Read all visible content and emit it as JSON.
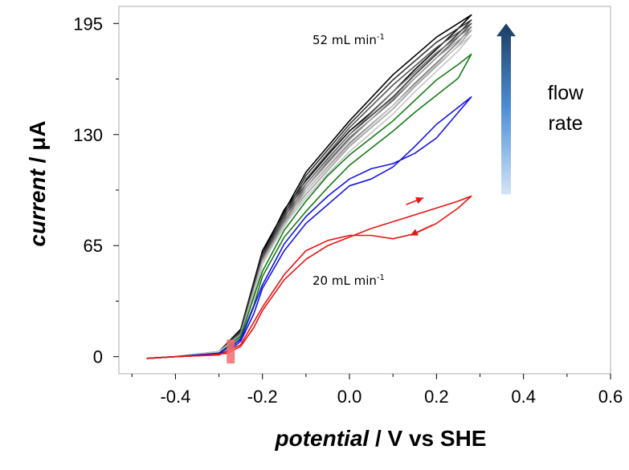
{
  "chart_data": {
    "type": "line",
    "title": "",
    "xlabel_italic": "potential",
    "xlabel_rest": " / V vs SHE",
    "ylabel_italic": "current",
    "ylabel_rest": " / μA",
    "xlim": [
      -0.53,
      0.6
    ],
    "ylim": [
      -10,
      205
    ],
    "x_ticks": [
      -0.4,
      -0.2,
      0.0,
      0.2,
      0.4,
      0.6
    ],
    "x_tick_labels": [
      "-0.4",
      "-0.2",
      "0.0",
      "0.2",
      "0.4",
      "0.6"
    ],
    "y_ticks": [
      0,
      65,
      130,
      195
    ],
    "y_tick_labels": [
      "0",
      "65",
      "130",
      "195"
    ],
    "grid": false,
    "series": [
      {
        "name": "52 mL min-1 (a)",
        "color": "#000000",
        "forward": [
          [
            -0.465,
            -1
          ],
          [
            -0.4,
            0
          ],
          [
            -0.32,
            1
          ],
          [
            -0.28,
            4
          ],
          [
            -0.25,
            15
          ],
          [
            -0.22,
            40
          ],
          [
            -0.2,
            60
          ],
          [
            -0.15,
            86
          ],
          [
            -0.1,
            103
          ],
          [
            -0.05,
            118
          ],
          [
            0.0,
            132
          ],
          [
            0.05,
            143
          ],
          [
            0.1,
            155
          ],
          [
            0.15,
            168
          ],
          [
            0.2,
            180
          ],
          [
            0.25,
            192
          ],
          [
            0.28,
            200
          ]
        ],
        "reverse": [
          [
            0.28,
            200
          ],
          [
            0.2,
            187
          ],
          [
            0.1,
            165
          ],
          [
            0.0,
            138
          ],
          [
            -0.1,
            108
          ],
          [
            -0.2,
            62
          ],
          [
            -0.25,
            16
          ],
          [
            -0.3,
            3
          ],
          [
            -0.4,
            0
          ],
          [
            -0.465,
            -1
          ]
        ]
      },
      {
        "name": "52 mL min-1 (b)",
        "color": "#333333",
        "forward": [
          [
            -0.465,
            -1
          ],
          [
            -0.4,
            0
          ],
          [
            -0.32,
            1
          ],
          [
            -0.28,
            4
          ],
          [
            -0.25,
            14
          ],
          [
            -0.22,
            38
          ],
          [
            -0.2,
            58
          ],
          [
            -0.15,
            84
          ],
          [
            -0.1,
            101
          ],
          [
            -0.05,
            116
          ],
          [
            0.0,
            130
          ],
          [
            0.05,
            141
          ],
          [
            0.1,
            152
          ],
          [
            0.15,
            165
          ],
          [
            0.2,
            177
          ],
          [
            0.25,
            189
          ],
          [
            0.28,
            197
          ]
        ],
        "reverse": [
          [
            0.28,
            197
          ],
          [
            0.2,
            184
          ],
          [
            0.1,
            162
          ],
          [
            0.0,
            136
          ],
          [
            -0.1,
            106
          ],
          [
            -0.2,
            60
          ],
          [
            -0.25,
            15
          ],
          [
            -0.3,
            3
          ],
          [
            -0.4,
            0
          ],
          [
            -0.465,
            -1
          ]
        ]
      },
      {
        "name": "52 mL min-1 (c)",
        "color": "#555555",
        "forward": [
          [
            -0.465,
            -1
          ],
          [
            -0.4,
            0
          ],
          [
            -0.32,
            1
          ],
          [
            -0.28,
            4
          ],
          [
            -0.25,
            14
          ],
          [
            -0.22,
            37
          ],
          [
            -0.2,
            57
          ],
          [
            -0.15,
            82
          ],
          [
            -0.1,
            99
          ],
          [
            -0.05,
            114
          ],
          [
            0.0,
            128
          ],
          [
            0.05,
            139
          ],
          [
            0.1,
            150
          ],
          [
            0.15,
            163
          ],
          [
            0.2,
            175
          ],
          [
            0.25,
            187
          ],
          [
            0.28,
            195
          ]
        ],
        "reverse": [
          [
            0.28,
            195
          ],
          [
            0.2,
            181
          ],
          [
            0.1,
            159
          ],
          [
            0.0,
            134
          ],
          [
            -0.1,
            104
          ],
          [
            -0.2,
            58
          ],
          [
            -0.25,
            14
          ],
          [
            -0.3,
            3
          ],
          [
            -0.4,
            0
          ],
          [
            -0.465,
            -1
          ]
        ]
      },
      {
        "name": "52 mL min-1 (d)",
        "color": "#7a7a7a",
        "forward": [
          [
            -0.465,
            -1
          ],
          [
            -0.4,
            0
          ],
          [
            -0.32,
            1
          ],
          [
            -0.28,
            4
          ],
          [
            -0.25,
            13
          ],
          [
            -0.22,
            36
          ],
          [
            -0.2,
            56
          ],
          [
            -0.15,
            80
          ],
          [
            -0.1,
            97
          ],
          [
            -0.05,
            111
          ],
          [
            0.0,
            125
          ],
          [
            0.05,
            136
          ],
          [
            0.1,
            147
          ],
          [
            0.15,
            160
          ],
          [
            0.2,
            172
          ],
          [
            0.25,
            184
          ],
          [
            0.28,
            193
          ]
        ],
        "reverse": [
          [
            0.28,
            193
          ],
          [
            0.2,
            178
          ],
          [
            0.1,
            155
          ],
          [
            0.0,
            130
          ],
          [
            -0.1,
            101
          ],
          [
            -0.2,
            57
          ],
          [
            -0.25,
            13
          ],
          [
            -0.3,
            3
          ],
          [
            -0.4,
            0
          ],
          [
            -0.465,
            -1
          ]
        ]
      },
      {
        "name": "52 mL min-1 (e)",
        "color": "#a0a0a0",
        "forward": [
          [
            -0.465,
            -1
          ],
          [
            -0.4,
            0
          ],
          [
            -0.32,
            1
          ],
          [
            -0.28,
            4
          ],
          [
            -0.25,
            13
          ],
          [
            -0.22,
            35
          ],
          [
            -0.2,
            55
          ],
          [
            -0.15,
            78
          ],
          [
            -0.1,
            95
          ],
          [
            -0.05,
            109
          ],
          [
            0.0,
            123
          ],
          [
            0.05,
            134
          ],
          [
            0.1,
            145
          ],
          [
            0.15,
            158
          ],
          [
            0.2,
            170
          ],
          [
            0.25,
            182
          ],
          [
            0.28,
            191
          ]
        ],
        "reverse": [
          [
            0.28,
            191
          ],
          [
            0.2,
            175
          ],
          [
            0.1,
            151
          ],
          [
            0.0,
            127
          ],
          [
            -0.1,
            99
          ],
          [
            -0.2,
            56
          ],
          [
            -0.25,
            13
          ],
          [
            -0.3,
            3
          ],
          [
            -0.4,
            0
          ],
          [
            -0.465,
            -1
          ]
        ]
      },
      {
        "name": "52 mL min-1 (f)",
        "color": "#c4c4c4",
        "forward": [
          [
            -0.465,
            -1
          ],
          [
            -0.4,
            0
          ],
          [
            -0.32,
            1
          ],
          [
            -0.28,
            3
          ],
          [
            -0.25,
            12
          ],
          [
            -0.22,
            34
          ],
          [
            -0.2,
            54
          ],
          [
            -0.15,
            77
          ],
          [
            -0.1,
            93
          ],
          [
            -0.05,
            107
          ],
          [
            0.0,
            120
          ],
          [
            0.05,
            131
          ],
          [
            0.1,
            142
          ],
          [
            0.15,
            155
          ],
          [
            0.2,
            167
          ],
          [
            0.25,
            179
          ],
          [
            0.28,
            188
          ]
        ],
        "reverse": [
          [
            0.28,
            188
          ],
          [
            0.2,
            171
          ],
          [
            0.1,
            147
          ],
          [
            0.0,
            124
          ],
          [
            -0.1,
            97
          ],
          [
            -0.2,
            55
          ],
          [
            -0.25,
            12
          ],
          [
            -0.3,
            3
          ],
          [
            -0.4,
            0
          ],
          [
            -0.465,
            -1
          ]
        ]
      },
      {
        "name": "green",
        "color": "#157a15",
        "forward": [
          [
            -0.465,
            -1
          ],
          [
            -0.4,
            0
          ],
          [
            -0.32,
            1
          ],
          [
            -0.28,
            3
          ],
          [
            -0.25,
            11
          ],
          [
            -0.22,
            30
          ],
          [
            -0.2,
            47
          ],
          [
            -0.15,
            70
          ],
          [
            -0.1,
            85
          ],
          [
            -0.05,
            99
          ],
          [
            0.0,
            112
          ],
          [
            0.05,
            122
          ],
          [
            0.1,
            132
          ],
          [
            0.15,
            143
          ],
          [
            0.2,
            153
          ],
          [
            0.25,
            163
          ],
          [
            0.28,
            177
          ]
        ],
        "reverse": [
          [
            0.28,
            177
          ],
          [
            0.25,
            171
          ],
          [
            0.2,
            162
          ],
          [
            0.15,
            150
          ],
          [
            0.1,
            138
          ],
          [
            0.05,
            128
          ],
          [
            0.0,
            118
          ],
          [
            -0.05,
            106
          ],
          [
            -0.1,
            91
          ],
          [
            -0.15,
            74
          ],
          [
            -0.2,
            50
          ],
          [
            -0.25,
            12
          ],
          [
            -0.3,
            2
          ],
          [
            -0.4,
            0
          ],
          [
            -0.465,
            -1
          ]
        ]
      },
      {
        "name": "blue",
        "color": "#1414e6",
        "forward": [
          [
            -0.465,
            -1
          ],
          [
            -0.4,
            0
          ],
          [
            -0.32,
            1
          ],
          [
            -0.28,
            3
          ],
          [
            -0.25,
            9
          ],
          [
            -0.22,
            25
          ],
          [
            -0.2,
            40
          ],
          [
            -0.15,
            62
          ],
          [
            -0.1,
            78
          ],
          [
            -0.05,
            89
          ],
          [
            0.0,
            100
          ],
          [
            0.05,
            104
          ],
          [
            0.1,
            111
          ],
          [
            0.15,
            123
          ],
          [
            0.2,
            136
          ],
          [
            0.25,
            146
          ],
          [
            0.28,
            152
          ]
        ],
        "reverse": [
          [
            0.28,
            152
          ],
          [
            0.25,
            143
          ],
          [
            0.2,
            128
          ],
          [
            0.15,
            119
          ],
          [
            0.1,
            113
          ],
          [
            0.05,
            110
          ],
          [
            0.0,
            104
          ],
          [
            -0.05,
            94
          ],
          [
            -0.1,
            82
          ],
          [
            -0.15,
            66
          ],
          [
            -0.2,
            42
          ],
          [
            -0.25,
            10
          ],
          [
            -0.3,
            2
          ],
          [
            -0.4,
            0
          ],
          [
            -0.465,
            -1
          ]
        ]
      },
      {
        "name": "20 mL min-1",
        "color": "#e81414",
        "forward": [
          [
            -0.465,
            -1
          ],
          [
            -0.4,
            0
          ],
          [
            -0.32,
            1
          ],
          [
            -0.28,
            2
          ],
          [
            -0.25,
            6
          ],
          [
            -0.22,
            17
          ],
          [
            -0.2,
            27
          ],
          [
            -0.15,
            45
          ],
          [
            -0.1,
            57
          ],
          [
            -0.05,
            65
          ],
          [
            0.0,
            70
          ],
          [
            0.05,
            75
          ],
          [
            0.1,
            79
          ],
          [
            0.15,
            83
          ],
          [
            0.2,
            87
          ],
          [
            0.25,
            91
          ],
          [
            0.28,
            94
          ]
        ],
        "reverse": [
          [
            0.28,
            94
          ],
          [
            0.25,
            87
          ],
          [
            0.2,
            78
          ],
          [
            0.15,
            72
          ],
          [
            0.1,
            69
          ],
          [
            0.05,
            71
          ],
          [
            0.02,
            71
          ],
          [
            0.0,
            71
          ],
          [
            -0.05,
            68
          ],
          [
            -0.1,
            62
          ],
          [
            -0.15,
            48
          ],
          [
            -0.2,
            29
          ],
          [
            -0.25,
            7
          ],
          [
            -0.3,
            1
          ],
          [
            -0.4,
            0
          ],
          [
            -0.465,
            -1
          ]
        ]
      }
    ],
    "annotations": [
      {
        "text": "52 mL min",
        "sup": "-1",
        "x": -0.085,
        "y": 183
      },
      {
        "text": "20 mL min",
        "sup": "-1",
        "x": -0.085,
        "y": 42
      }
    ],
    "scan_arrows": [
      {
        "direction": "forward",
        "from": [
          0.13,
          89
        ],
        "to": [
          0.17,
          93
        ]
      },
      {
        "direction": "reverse",
        "from": [
          0.19,
          77
        ],
        "to": [
          0.14,
          71
        ]
      }
    ],
    "onset_marker": {
      "x": -0.273,
      "y_range": [
        -4,
        10
      ],
      "color": "#f26f6f"
    },
    "flow_arrow": {
      "label_line1": "flow",
      "label_line2": "rate",
      "x": 0.36,
      "y_from": 95,
      "y_to": 195,
      "color_top": "#1b3c63",
      "color_mid": "#4f8fd8",
      "color_bottom": "#d3e4f7"
    }
  }
}
